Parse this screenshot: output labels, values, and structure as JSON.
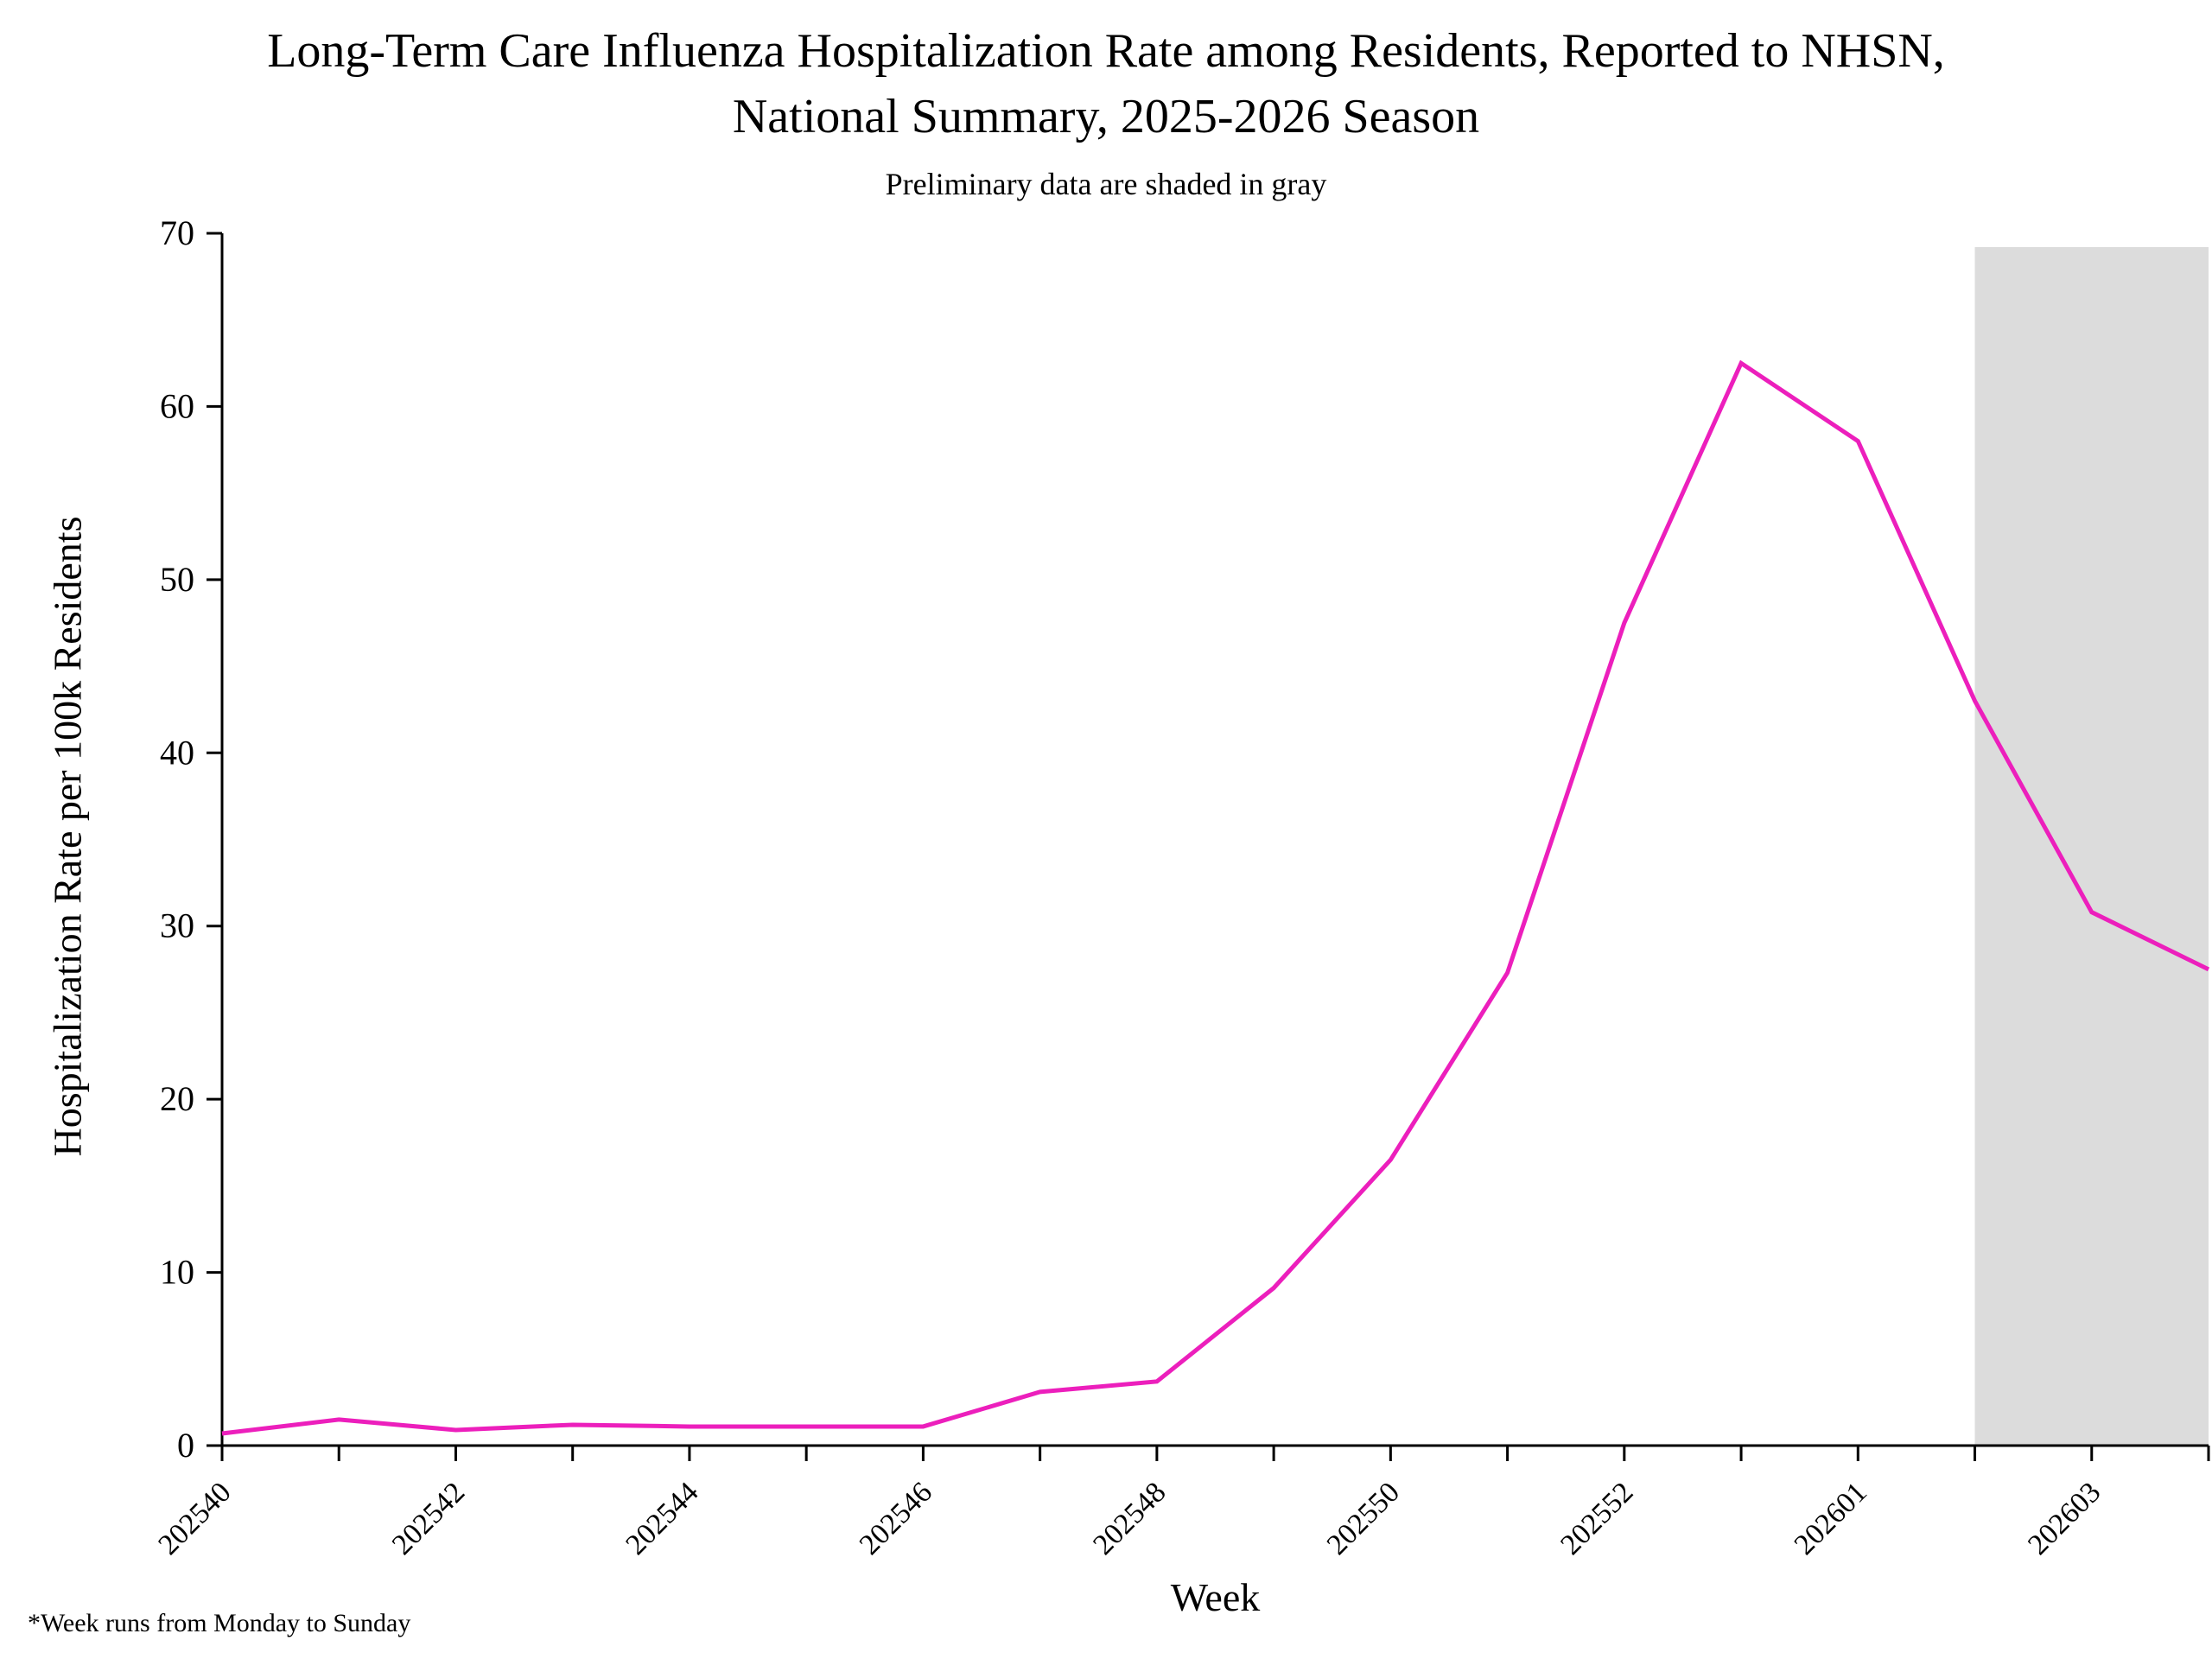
{
  "page": {
    "title_line1": "Long-Term Care Influenza Hospitalization Rate among Residents, Reported to NHSN,",
    "title_line2": "National Summary, 2025-2026 Season",
    "subtitle": "Preliminary data are shaded in gray",
    "xlabel": "Week",
    "ylabel": "Hospitalization Rate per 100k Residents",
    "footnote": "*Week runs from Monday to Sunday"
  },
  "chart_data": {
    "type": "line",
    "title": "Long-Term Care Influenza Hospitalization Rate among Residents, Reported to NHSN, National Summary, 2025-2026 Season",
    "subtitle": "Preliminary data are shaded in gray",
    "xlabel": "Week",
    "ylabel": "Hospitalization Rate per 100k Residents",
    "ylim": [
      0,
      70
    ],
    "yticks": [
      0,
      10,
      20,
      30,
      40,
      50,
      60,
      70
    ],
    "grid": false,
    "legend_position": "none",
    "x": [
      "202540",
      "202541",
      "202542",
      "202543",
      "202544",
      "202545",
      "202546",
      "202547",
      "202548",
      "202549",
      "202550",
      "202551",
      "202552",
      "202553",
      "202601",
      "202602",
      "202603",
      "202604"
    ],
    "xtick_labels": [
      "202540",
      "202542",
      "202544",
      "202546",
      "202548",
      "202550",
      "202552",
      "202601",
      "202603"
    ],
    "series": [
      {
        "name": "Hospitalization Rate per 100k Residents",
        "color": "#EC1FBC",
        "values": [
          0.7,
          1.5,
          0.9,
          1.2,
          1.1,
          1.1,
          1.1,
          3.1,
          3.7,
          9.1,
          16.5,
          27.3,
          47.5,
          62.5,
          58.0,
          43.0,
          30.8,
          27.5
        ]
      }
    ],
    "preliminary_shading": {
      "start_week": "202602",
      "end_week": "202604",
      "color": "#DCDCDC",
      "note": "Preliminary data are shaded in gray"
    }
  }
}
